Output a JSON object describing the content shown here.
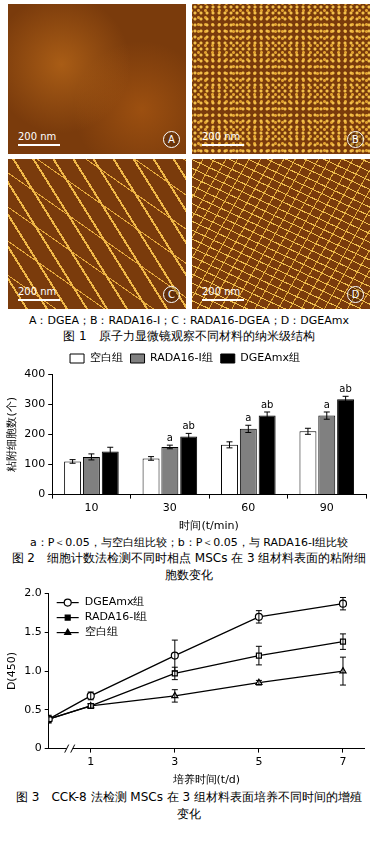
{
  "figure1": {
    "panels": [
      {
        "letter": "A",
        "scale_bar": "200 nm"
      },
      {
        "letter": "B",
        "scale_bar": "200 nm"
      },
      {
        "letter": "C",
        "scale_bar": "200 nm"
      },
      {
        "letter": "D",
        "scale_bar": "200 nm"
      }
    ],
    "key": "A：DGEA；B：RADA16-Ⅰ；C：RADA16-DGEA；D：DGEAmx",
    "caption": "图 1　原子力显微镜观察不同材料的纳米级结构"
  },
  "chart_data": [
    {
      "type": "bar",
      "title": "图 2　细胞计数法检测不同时相点 MSCs 在 3 组材料表面的粘附细胞数变化",
      "x_label": "时间(t/min)",
      "y_label": "粘附细胞数(个)",
      "annotations": [
        "a：P＜0.05，与空白组比较；b：P＜0.05，与 RADA16-Ⅰ组比较"
      ],
      "categories": [
        "10",
        "30",
        "60",
        "90"
      ],
      "series": [
        {
          "name": "空白组",
          "color": "#ffffff",
          "values": [
            110,
            120,
            165,
            210
          ],
          "errors": [
            6,
            6,
            10,
            10
          ],
          "significance": [
            null,
            null,
            null,
            null
          ]
        },
        {
          "name": "RADA16-Ⅰ组",
          "color": "#808080",
          "values": [
            125,
            158,
            218,
            262
          ],
          "errors": [
            10,
            6,
            12,
            12
          ],
          "significance": [
            null,
            "a",
            "a",
            "a"
          ]
        },
        {
          "name": "DGEAmx组",
          "color": "#000000",
          "values": [
            143,
            193,
            262,
            316
          ],
          "errors": [
            14,
            10,
            12,
            10
          ],
          "significance": [
            null,
            "ab",
            "ab",
            "ab"
          ]
        }
      ],
      "ylim": [
        0,
        400
      ],
      "yticks": [
        0,
        100,
        200,
        300,
        400
      ],
      "grid": false,
      "legend": "top"
    },
    {
      "type": "line",
      "title": "图 3　CCK-8 法检测 MSCs 在 3 组材料表面培养不同时间的增殖变化",
      "x_label": "培养时间(t/d)",
      "y_label": "D(450)",
      "x": [
        0,
        1,
        3,
        5,
        7
      ],
      "series": [
        {
          "name": "DGEAmx组",
          "color": "#000000",
          "marker": "circle",
          "line_style": "solid",
          "values": [
            0.38,
            0.68,
            1.2,
            1.7,
            1.87
          ],
          "errors": [
            0.05,
            0.05,
            0.2,
            0.08,
            0.08
          ]
        },
        {
          "name": "RADA16-Ⅰ组",
          "color": "#000000",
          "marker": "square",
          "line_style": "solid",
          "values": [
            0.38,
            0.55,
            0.97,
            1.2,
            1.38
          ],
          "errors": [
            0.03,
            0.03,
            0.08,
            0.12,
            0.1
          ]
        },
        {
          "name": "空白组",
          "color": "#000000",
          "marker": "triangle",
          "line_style": "solid",
          "values": [
            0.38,
            0.55,
            0.68,
            0.85,
            1.0
          ],
          "errors": [
            0.03,
            0.03,
            0.08,
            0.03,
            0.18
          ]
        }
      ],
      "xlim": [
        0,
        7.5
      ],
      "xticks": [
        1,
        3,
        5,
        7
      ],
      "ylim": [
        0,
        2
      ],
      "yticks": [
        0,
        0.5,
        {
          "value": 1,
          "label": "1.0"
        },
        1.5,
        {
          "value": 2,
          "label": "2.0"
        }
      ],
      "grid": false,
      "legend": "upper left"
    }
  ]
}
